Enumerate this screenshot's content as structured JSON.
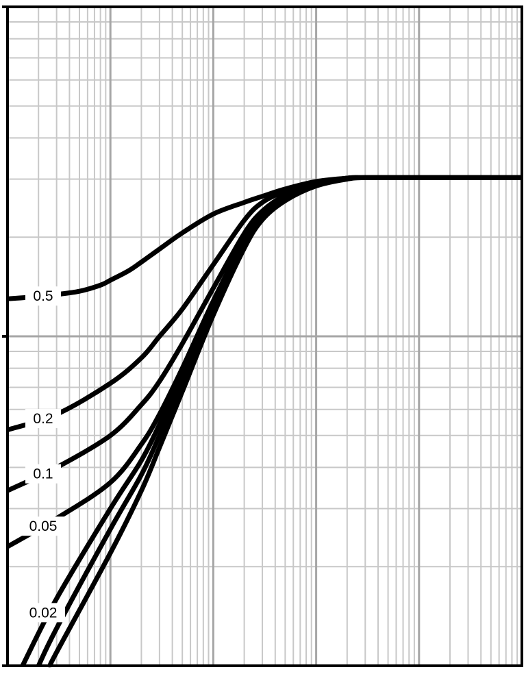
{
  "chart_data": {
    "type": "line",
    "title": "",
    "xlabel": "",
    "ylabel": "",
    "x_scale": "log",
    "y_scale": "log",
    "x_decades": 5,
    "y_decades": 2,
    "grid": true,
    "legend": "none",
    "tick_labels_visible": false,
    "series": [
      {
        "name": "0.5",
        "label": "0.5",
        "x": [
          1,
          2,
          3,
          5,
          8,
          10,
          15,
          20,
          30,
          50,
          100,
          200,
          300,
          500,
          1000,
          2000,
          3000,
          5000,
          10000,
          30000,
          100000
        ],
        "y": [
          0.13,
          0.132,
          0.134,
          0.137,
          0.143,
          0.148,
          0.158,
          0.168,
          0.184,
          0.206,
          0.235,
          0.255,
          0.266,
          0.28,
          0.295,
          0.302,
          0.303,
          0.303,
          0.303,
          0.303,
          0.303
        ]
      },
      {
        "name": "0.2",
        "label": "0.2",
        "x": [
          1,
          3,
          10,
          20,
          30,
          50,
          100,
          200,
          300,
          500,
          1000,
          2000,
          3000,
          10000,
          30000,
          100000
        ],
        "y": [
          0.052,
          0.058,
          0.072,
          0.086,
          0.1,
          0.121,
          0.165,
          0.225,
          0.255,
          0.275,
          0.292,
          0.302,
          0.303,
          0.303,
          0.303,
          0.303
        ]
      },
      {
        "name": "0.1",
        "label": "0.1",
        "x": [
          1,
          3,
          10,
          20,
          30,
          50,
          100,
          200,
          300,
          500,
          1000,
          2000,
          3000,
          10000,
          30000,
          100000
        ],
        "y": [
          0.034,
          0.04,
          0.05,
          0.062,
          0.073,
          0.095,
          0.14,
          0.205,
          0.24,
          0.268,
          0.29,
          0.302,
          0.303,
          0.303,
          0.303,
          0.303
        ]
      },
      {
        "name": "0.05",
        "label": "0.05",
        "x": [
          1,
          3,
          10,
          20,
          30,
          50,
          100,
          200,
          300,
          500,
          1000,
          2000,
          3000,
          10000,
          30000,
          100000
        ],
        "y": [
          0.023,
          0.028,
          0.036,
          0.047,
          0.058,
          0.08,
          0.128,
          0.196,
          0.235,
          0.265,
          0.289,
          0.302,
          0.303,
          0.303,
          0.303,
          0.303
        ]
      },
      {
        "name": "0.02",
        "label": "0.02",
        "x": [
          1.4,
          3,
          10,
          20,
          30,
          50,
          100,
          200,
          300,
          500,
          1000,
          2000,
          3000,
          10000,
          30000,
          100000
        ],
        "y": [
          0.01,
          0.016,
          0.03,
          0.042,
          0.054,
          0.076,
          0.124,
          0.192,
          0.232,
          0.262,
          0.288,
          0.301,
          0.303,
          0.303,
          0.303,
          0.303
        ]
      },
      {
        "name": "",
        "x": [
          2.0,
          3,
          10,
          20,
          30,
          50,
          100,
          200,
          300,
          500,
          1000,
          2000,
          3000,
          10000,
          30000,
          100000
        ],
        "y": [
          0.01,
          0.013,
          0.026,
          0.038,
          0.05,
          0.072,
          0.12,
          0.188,
          0.229,
          0.26,
          0.287,
          0.301,
          0.303,
          0.303,
          0.303,
          0.303
        ]
      },
      {
        "name": "",
        "x": [
          2.6,
          3,
          10,
          20,
          30,
          50,
          100,
          200,
          300,
          500,
          1000,
          2000,
          3000,
          10000,
          30000,
          100000
        ],
        "y": [
          0.01,
          0.011,
          0.022,
          0.034,
          0.046,
          0.068,
          0.116,
          0.185,
          0.226,
          0.258,
          0.286,
          0.3,
          0.303,
          0.303,
          0.303,
          0.303
        ]
      }
    ]
  }
}
